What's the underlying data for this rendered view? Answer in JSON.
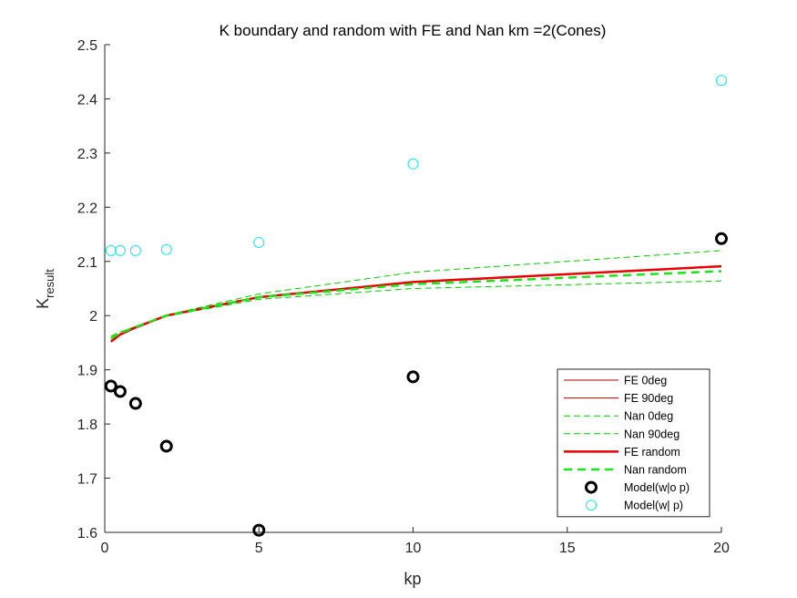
{
  "chart_data": {
    "type": "line",
    "title": "K boundary and random with FE and Nan km =2(Cones)",
    "xlabel": "kp",
    "ylabel_main": "K",
    "ylabel_sub": "result",
    "xlim": [
      0,
      20
    ],
    "ylim": [
      1.6,
      2.5
    ],
    "xticks": [
      "0",
      "5",
      "10",
      "15",
      "20"
    ],
    "yticks": [
      "1.6",
      "1.7",
      "1.8",
      "1.9",
      "2",
      "2.1",
      "2.2",
      "2.3",
      "2.4",
      "2.5"
    ],
    "grid": false,
    "legend_position": "bottom-right",
    "x": [
      0.2,
      0.5,
      1,
      2,
      5,
      10,
      20
    ],
    "series": [
      {
        "name": "FE 0deg",
        "color": "#b30000",
        "width": 1,
        "dash": "",
        "values": [
          1.952,
          1.965,
          1.978,
          2.0,
          2.034,
          2.062,
          2.091
        ]
      },
      {
        "name": "FE 90deg",
        "color": "#b30000",
        "width": 1,
        "dash": "",
        "values": [
          1.952,
          1.965,
          1.978,
          2.0,
          2.034,
          2.062,
          2.091
        ]
      },
      {
        "name": "Nan 0deg",
        "color": "#00cc00",
        "width": 1,
        "dash": "7,4",
        "values": [
          1.962,
          1.97,
          1.98,
          2.001,
          2.04,
          2.08,
          2.12
        ]
      },
      {
        "name": "Nan 90deg",
        "color": "#00cc00",
        "width": 1,
        "dash": "7,4",
        "values": [
          1.957,
          1.967,
          1.978,
          1.999,
          2.03,
          2.05,
          2.064
        ]
      },
      {
        "name": "FE random",
        "color": "#e60000",
        "width": 2.5,
        "dash": "",
        "values": [
          1.952,
          1.965,
          1.978,
          2.0,
          2.034,
          2.062,
          2.091
        ]
      },
      {
        "name": "Nan random",
        "color": "#19e619",
        "width": 2.5,
        "dash": "9,6",
        "values": [
          1.958,
          1.968,
          1.979,
          2.0,
          2.034,
          2.058,
          2.082
        ]
      }
    ],
    "markers": [
      {
        "name": "Model(w|o p)",
        "color": "#000000",
        "stroke_width": 3,
        "radius": 5.5,
        "x": [
          0.2,
          0.5,
          1,
          2,
          5,
          10,
          20
        ],
        "values": [
          1.87,
          1.86,
          1.838,
          1.759,
          1.604,
          1.887,
          2.142
        ]
      },
      {
        "name": "Model(w| p)",
        "color": "#19e5e5",
        "stroke_width": 1,
        "radius": 5.5,
        "x": [
          0.2,
          0.5,
          1,
          2,
          5,
          10,
          20
        ],
        "values": [
          2.12,
          2.12,
          2.12,
          2.122,
          2.135,
          2.28,
          2.434
        ]
      }
    ]
  }
}
